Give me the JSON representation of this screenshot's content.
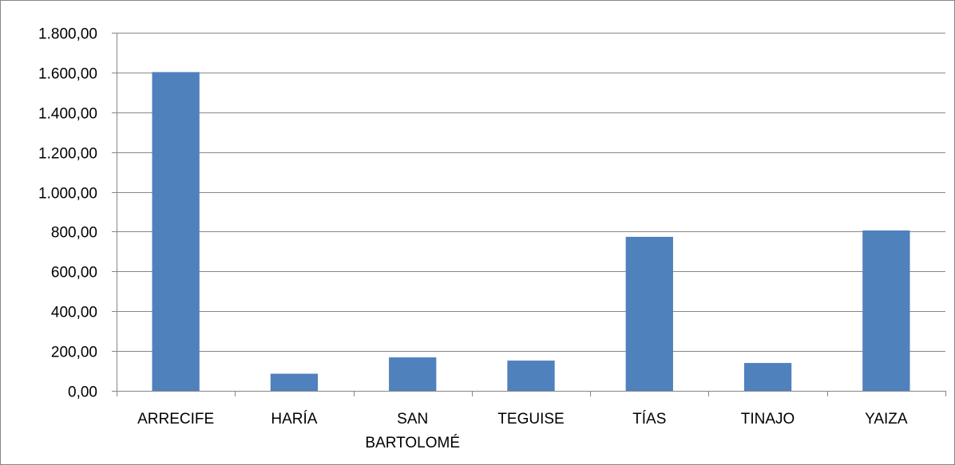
{
  "chart_data": {
    "type": "bar",
    "title": "",
    "xlabel": "",
    "ylabel": "",
    "categories": [
      "ARRECIFE",
      "HARÍA",
      "SAN BARTOLOMÉ",
      "TEGUISE",
      "TÍAS",
      "TINAJO",
      "YAIZA"
    ],
    "category_lines": [
      [
        "ARRECIFE"
      ],
      [
        "HARÍA"
      ],
      [
        "SAN",
        "BARTOLOMÉ"
      ],
      [
        "TEGUISE"
      ],
      [
        "TÍAS"
      ],
      [
        "TINAJO"
      ],
      [
        "YAIZA"
      ]
    ],
    "values": [
      1602,
      86,
      168,
      152,
      774,
      140,
      806
    ],
    "ylim": [
      0,
      1800
    ],
    "yticks": [
      0,
      200,
      400,
      600,
      800,
      1000,
      1200,
      1400,
      1600,
      1800
    ],
    "ytick_labels": [
      "0,00",
      "200,00",
      "400,00",
      "600,00",
      "800,00",
      "1.000,00",
      "1.200,00",
      "1.400,00",
      "1.600,00",
      "1.800,00"
    ],
    "grid": true,
    "legend": "none",
    "bar_color": "#4F81BD",
    "grid_color": "#868686",
    "frame_color": "#868686"
  }
}
